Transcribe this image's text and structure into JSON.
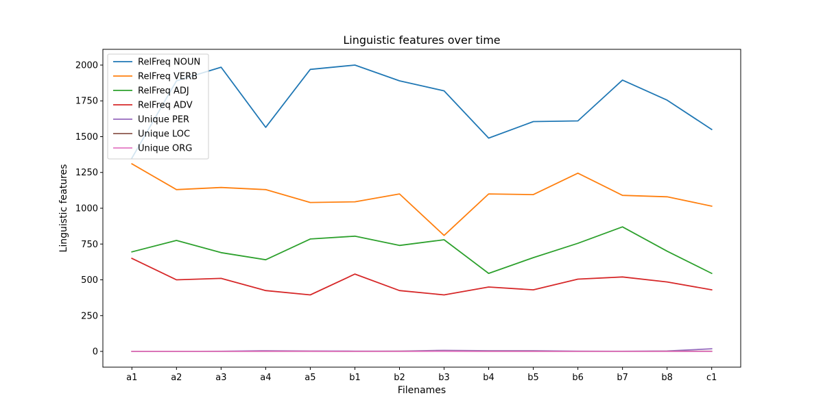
{
  "chart_data": {
    "type": "line",
    "title": "Linguistic features over time",
    "xlabel": "Filenames",
    "ylabel": "Linguistic features",
    "categories": [
      "a1",
      "a2",
      "a3",
      "a4",
      "a5",
      "b1",
      "b2",
      "b3",
      "b4",
      "b5",
      "b6",
      "b7",
      "b8",
      "c1"
    ],
    "yticks": [
      0,
      250,
      500,
      750,
      1000,
      1250,
      1500,
      1750,
      2000
    ],
    "ylim": [
      -110,
      2110
    ],
    "grid": false,
    "legend_position": "upper-left",
    "series": [
      {
        "name": "RelFreq NOUN",
        "color": "#1f77b4",
        "values": [
          1350,
          1890,
          1985,
          1565,
          1970,
          2000,
          1890,
          1820,
          1490,
          1605,
          1610,
          1895,
          1755,
          1550
        ]
      },
      {
        "name": "RelFreq VERB",
        "color": "#ff7f0e",
        "values": [
          1310,
          1130,
          1145,
          1130,
          1040,
          1045,
          1100,
          810,
          1100,
          1095,
          1245,
          1090,
          1080,
          1015
        ]
      },
      {
        "name": "RelFreq ADJ",
        "color": "#2ca02c",
        "values": [
          695,
          775,
          690,
          640,
          785,
          805,
          740,
          780,
          545,
          655,
          755,
          870,
          700,
          545
        ]
      },
      {
        "name": "RelFreq ADV",
        "color": "#d62728",
        "values": [
          650,
          500,
          510,
          425,
          395,
          540,
          425,
          395,
          450,
          430,
          505,
          520,
          485,
          430
        ]
      },
      {
        "name": "Unique PER",
        "color": "#9467bd",
        "values": [
          0,
          0,
          1,
          5,
          3,
          2,
          2,
          7,
          5,
          5,
          2,
          1,
          3,
          18
        ]
      },
      {
        "name": "Unique LOC",
        "color": "#8c564b",
        "values": [
          0,
          0,
          0,
          1,
          1,
          0,
          1,
          2,
          1,
          1,
          0,
          0,
          1,
          1
        ]
      },
      {
        "name": "Unique ORG",
        "color": "#e377c2",
        "values": [
          0,
          0,
          0,
          1,
          1,
          0,
          0,
          1,
          0,
          0,
          0,
          0,
          0,
          0
        ]
      }
    ]
  }
}
